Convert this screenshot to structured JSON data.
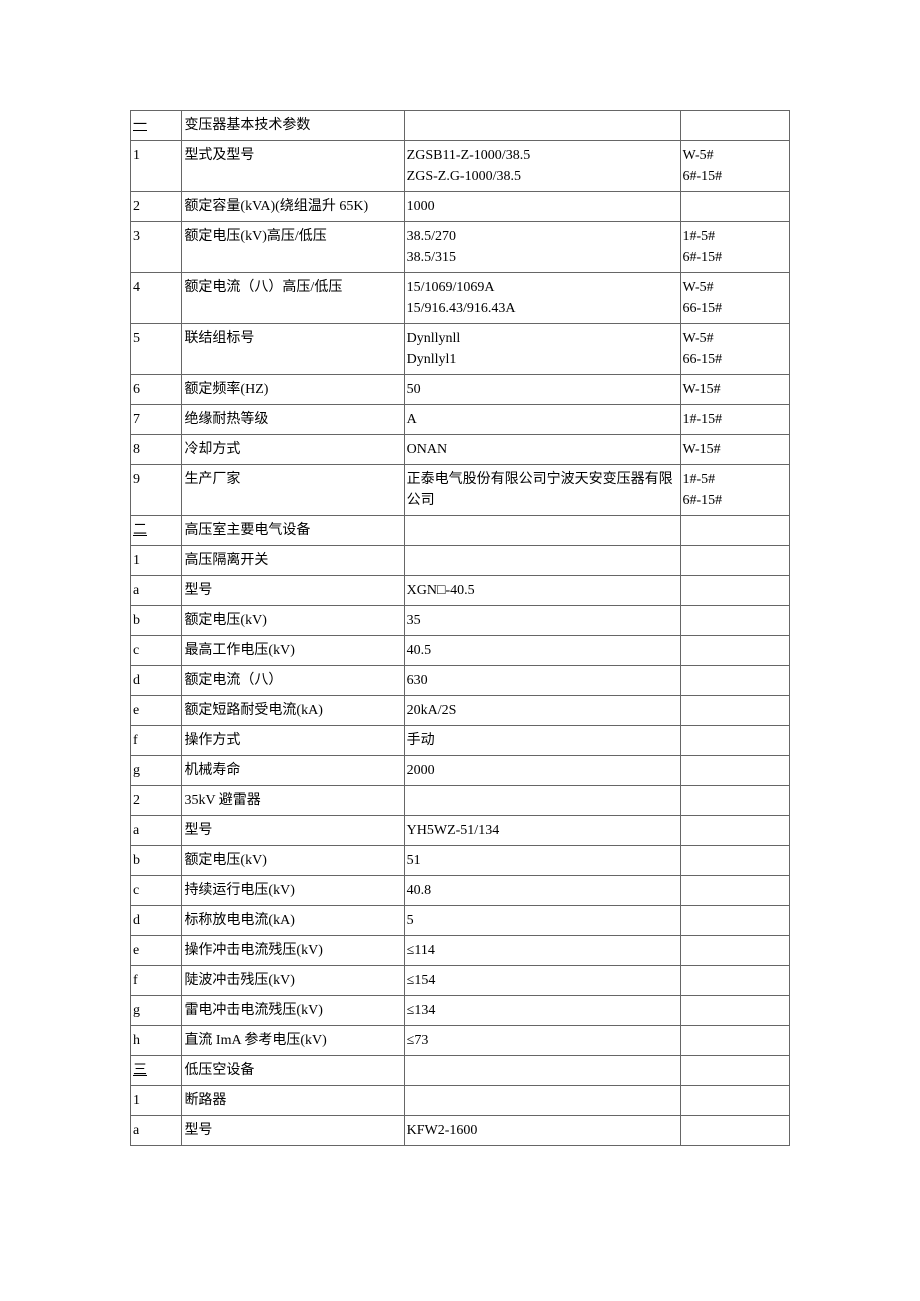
{
  "table": {
    "columns": [
      "col-1",
      "col-2",
      "col-3",
      "col-4"
    ],
    "rows": [
      {
        "c1": "一",
        "c2": "变压器基本技术参数",
        "c3": "",
        "c4": "",
        "section": true
      },
      {
        "c1": "1",
        "c2": "型式及型号",
        "c3": "ZGSB11-Z-1000/38.5\nZGS-Z.G-1000/38.5",
        "c4": "W-5#\n6#-15#"
      },
      {
        "c1": "2",
        "c2": "额定容量(kVA)(绕组温升 65K)",
        "c3": "1000",
        "c4": ""
      },
      {
        "c1": "3",
        "c2": "额定电压(kV)高压/低压",
        "c3": "38.5/270\n38.5/315",
        "c4": "1#-5#\n6#-15#"
      },
      {
        "c1": "4",
        "c2": "额定电流（八）高压/低压",
        "c3": "15/1069/1069A\n15/916.43/916.43A",
        "c4": "W-5#\n66-15#"
      },
      {
        "c1": "5",
        "c2": "联结组标号",
        "c3": "Dynllynll\nDynllyl1",
        "c4": "W-5#\n66-15#"
      },
      {
        "c1": "6",
        "c2": "额定频率(HZ)",
        "c3": "50",
        "c4": "W-15#"
      },
      {
        "c1": "7",
        "c2": "绝缘耐热等级",
        "c3": "A",
        "c4": "1#-15#"
      },
      {
        "c1": "8",
        "c2": "冷却方式",
        "c3": "ONAN",
        "c4": "W-15#"
      },
      {
        "c1": "9",
        "c2": "生产厂家",
        "c3": "正泰电气股份有限公司宁波天安变压器有限公司",
        "c4": "1#-5#\n6#-15#"
      },
      {
        "c1": "二",
        "c2": "高压室主要电气设备",
        "c3": "",
        "c4": "",
        "section": true
      },
      {
        "c1": "1",
        "c2": "高压隔离开关",
        "c3": "",
        "c4": ""
      },
      {
        "c1": "a",
        "c2": "型号",
        "c3": "XGN□-40.5",
        "c4": ""
      },
      {
        "c1": "b",
        "c2": "额定电压(kV)",
        "c3": "35",
        "c4": ""
      },
      {
        "c1": "c",
        "c2": "最高工作电压(kV)",
        "c3": "40.5",
        "c4": ""
      },
      {
        "c1": "d",
        "c2": "额定电流（八）",
        "c3": "630",
        "c4": ""
      },
      {
        "c1": "e",
        "c2": "额定短路耐受电流(kA)",
        "c3": "20kA/2S",
        "c4": ""
      },
      {
        "c1": "f",
        "c2": "操作方式",
        "c3": "手动",
        "c4": ""
      },
      {
        "c1": "g",
        "c2": "机械寿命",
        "c3": "2000",
        "c4": ""
      },
      {
        "c1": "2",
        "c2": "35kV 避雷器",
        "c3": "",
        "c4": ""
      },
      {
        "c1": "a",
        "c2": "型号",
        "c3": "YH5WZ-51/134",
        "c4": ""
      },
      {
        "c1": "b",
        "c2": "额定电压(kV)",
        "c3": "51",
        "c4": ""
      },
      {
        "c1": "c",
        "c2": "持续运行电压(kV)",
        "c3": "40.8",
        "c4": ""
      },
      {
        "c1": "d",
        "c2": "标称放电电流(kA)",
        "c3": "5",
        "c4": ""
      },
      {
        "c1": "e",
        "c2": "操作冲击电流残压(kV)",
        "c3": "≤114",
        "c4": ""
      },
      {
        "c1": "f",
        "c2": "陡波冲击残压(kV)",
        "c3": "≤154",
        "c4": ""
      },
      {
        "c1": "g",
        "c2": "雷电冲击电流残压(kV)",
        "c3": "≤134",
        "c4": ""
      },
      {
        "c1": "h",
        "c2": "直流 ImA 参考电压(kV)",
        "c3": "≤73",
        "c4": ""
      },
      {
        "c1": "三",
        "c2": "低压空设备",
        "c3": "",
        "c4": "",
        "section": true
      },
      {
        "c1": "1",
        "c2": "断路器",
        "c3": "",
        "c4": ""
      },
      {
        "c1": "a",
        "c2": "型号",
        "c3": "KFW2-1600",
        "c4": ""
      }
    ]
  }
}
